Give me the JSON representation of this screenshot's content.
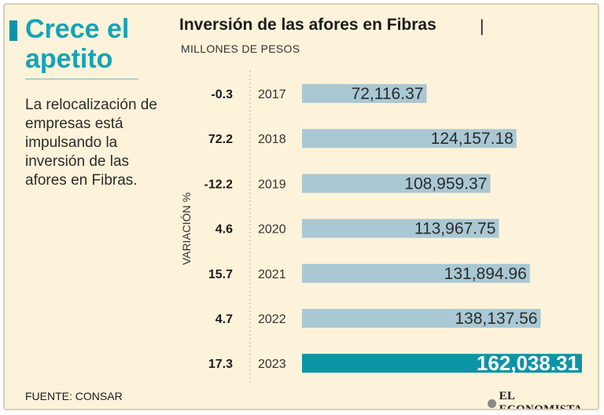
{
  "headline": {
    "line1": "Crece el",
    "line2": "apetito"
  },
  "deck": "La relocalización de empresas está impulsando la inversión de las afores en Fibras.",
  "chart_title": "Inversión de las afores en Fibras",
  "title_separator": "|",
  "source": "FUENTE: CONSAR",
  "brand": "EL ECONOMISTA",
  "colors": {
    "background": "#fdf3da",
    "bar": "#a9c8d3",
    "bar_highlight": "#0d93a6",
    "headline": "#14a3b7"
  },
  "chart_data": {
    "type": "bar",
    "orientation": "horizontal",
    "title": "Inversión de las afores en Fibras",
    "subtitle": "MILLONES DE PESOS",
    "variation_label": "VARIACIÓN %",
    "categories": [
      "2017",
      "2018",
      "2019",
      "2020",
      "2021",
      "2022",
      "2023"
    ],
    "values": [
      72116.37,
      124157.18,
      108959.37,
      113967.75,
      131894.96,
      138137.56,
      162038.31
    ],
    "value_labels": [
      "72,116.37",
      "124,157.18",
      "108,959.37",
      "113,967.75",
      "131,894.96",
      "138,137.56",
      "162,038.31"
    ],
    "variation": [
      "-0.3",
      "72.2",
      "-12.2",
      "4.6",
      "15.7",
      "4.7",
      "17.3"
    ],
    "highlight_index": 6,
    "xlim": [
      0,
      162038.31
    ]
  }
}
